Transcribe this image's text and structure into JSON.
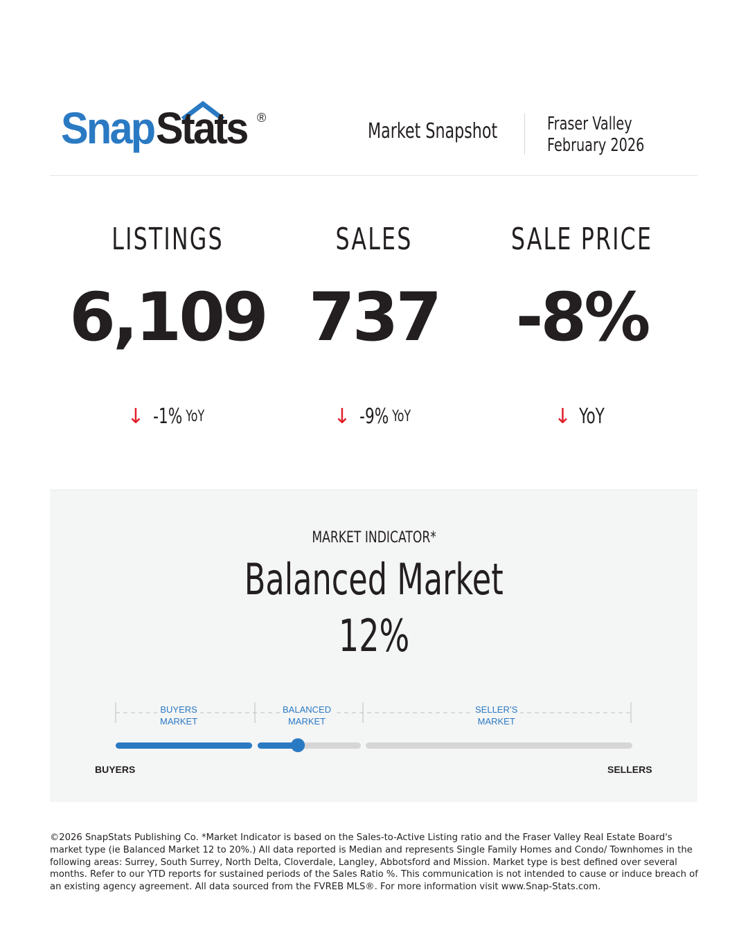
{
  "brand": {
    "logo_part1": "Snap",
    "logo_part2": "Stats",
    "logo_reg": "®",
    "primary_color": "#2a7ac3",
    "dark_color": "#231f20",
    "accent_red": "#e0202a"
  },
  "header": {
    "title": "Market Snapshot",
    "region": "Fraser Valley",
    "period": "February 2026"
  },
  "stats": [
    {
      "label": "LISTINGS",
      "value": "6,109",
      "arrow": "↓",
      "change": "-1%",
      "yoy": "YoY"
    },
    {
      "label": "SALES",
      "value": "737",
      "arrow": "↓",
      "change": "-9%",
      "yoy": "YoY"
    },
    {
      "label": "SALE PRICE",
      "value": "-8%",
      "arrow": "↓",
      "change": "",
      "yoy": "YoY"
    }
  ],
  "market_indicator": {
    "label": "MARKET INDICATOR*",
    "type": "Balanced Market",
    "percent": "12%",
    "gauge": {
      "segments": [
        {
          "line1": "BUYERS",
          "line2": "MARKET"
        },
        {
          "line1": "BALANCED",
          "line2": "MARKET"
        },
        {
          "line1": "SELLER’S",
          "line2": "MARKET"
        }
      ],
      "left_label": "BUYERS",
      "right_label": "SELLERS",
      "buyers_range_pct": [
        0,
        12
      ],
      "balanced_range_pct": [
        12,
        20
      ],
      "value_pct": 12
    }
  },
  "footnote": "©2026 SnapStats Publishing Co. *Market Indicator is based on the Sales-to-Active Listing ratio and the Fraser Valley Real Estate Board's market type (ie Balanced Market 12 to 20%.) All data reported is Median and represents Single Family Homes and Condo/ Townhomes in the following areas: Surrey, South Surrey, North Delta, Cloverdale, Langley, Abbotsford and Mission. Market type is best defined over several months. Refer to our YTD reports for sustained periods of the Sales Ratio %. This communication is not intended to cause or induce breach of an existing agency agreement. All data sourced from the FVREB MLS®. For more information visit www.Snap-Stats.com."
}
